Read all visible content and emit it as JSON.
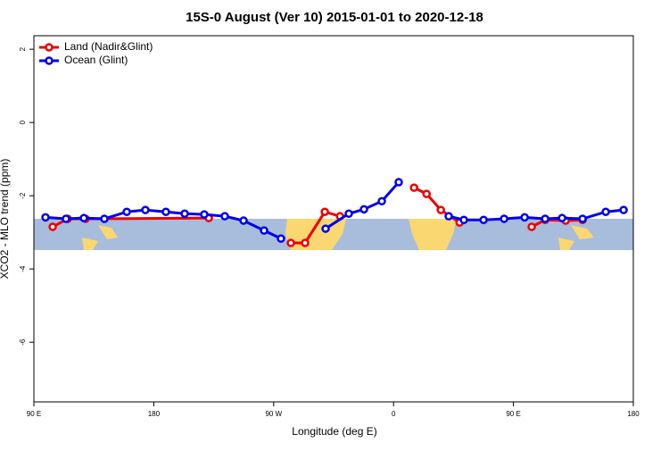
{
  "chart_data": {
    "type": "line",
    "title": "15S-0 August (Ver 10)   2015-01-01 to 2020-12-18",
    "x_label": "Longitude (deg E)",
    "y_label": "XCO2 - MLO trend (ppm)",
    "xlim": [
      90,
      540
    ],
    "ylim": [
      -7.63,
      2.37
    ],
    "xticks": [
      {
        "value": 90,
        "label": "90 E"
      },
      {
        "value": 180,
        "label": "180"
      },
      {
        "value": 270,
        "label": "90 W"
      },
      {
        "value": 360,
        "label": "0"
      },
      {
        "value": 450,
        "label": "90 E"
      },
      {
        "value": 540,
        "label": "180"
      }
    ],
    "yticks": [
      2,
      0,
      -2,
      -4,
      -6
    ],
    "legend": "top-left",
    "series": [
      {
        "name": "Land (Nadir&Glint)",
        "color": "#ee0000",
        "x": [
          104.1,
          115.4,
          128.8,
          221.3,
          250,
          282.9,
          293.6,
          308.4,
          319.8,
          350,
          375.4,
          384.8,
          395.5,
          409.6,
          440,
          463.7,
          473.8,
          489.2,
          501.9
        ],
        "values": [
          -2.85,
          -2.63,
          -2.63,
          -2.61,
          null,
          -3.29,
          -3.29,
          -2.44,
          -2.56,
          null,
          -1.78,
          -1.95,
          -2.39,
          -2.73,
          null,
          -2.85,
          -2.66,
          -2.68,
          -2.66
        ]
      },
      {
        "name": "Ocean (Glint)",
        "color": "#0000ee",
        "x": [
          98.7,
          114.1,
          127.5,
          142.9,
          159.7,
          173.7,
          189.1,
          203.2,
          217.9,
          233.3,
          247.4,
          262.8,
          275.5,
          290,
          309.0,
          326.4,
          337.8,
          351.2,
          363.9,
          380,
          401.4,
          412.8,
          427.6,
          443.0,
          458.4,
          473.8,
          486.5,
          501.9,
          519.3,
          532.7
        ],
        "values": [
          -2.59,
          -2.63,
          -2.61,
          -2.63,
          -2.44,
          -2.39,
          -2.44,
          -2.49,
          -2.51,
          -2.56,
          -2.68,
          -2.95,
          -3.17,
          null,
          -2.9,
          -2.49,
          -2.37,
          -2.15,
          -1.63,
          null,
          -2.56,
          -2.66,
          -2.66,
          -2.63,
          -2.59,
          -2.63,
          -2.61,
          -2.63,
          -2.44,
          -2.39
        ]
      }
    ]
  }
}
